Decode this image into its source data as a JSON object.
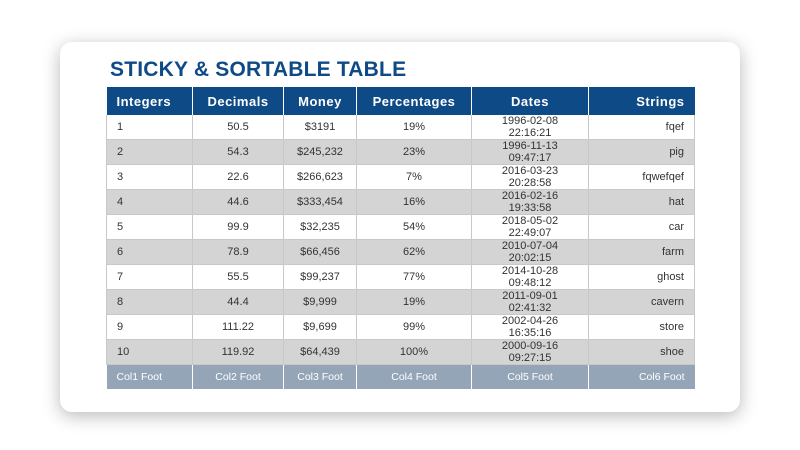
{
  "title": "STICKY & SORTABLE TABLE",
  "colors": {
    "header_bg": "#0e4a86",
    "title": "#0e4a86",
    "row_alt": "#d4d4d4",
    "footer_bg": "#94a5b8"
  },
  "columns": [
    "Integers",
    "Decimals",
    "Money",
    "Percentages",
    "Dates",
    "Strings"
  ],
  "rows": [
    [
      "1",
      "50.5",
      "$3191",
      "19%",
      "1996-02-08 22:16:21",
      "fqef"
    ],
    [
      "2",
      "54.3",
      "$245,232",
      "23%",
      "1996-11-13 09:47:17",
      "pig"
    ],
    [
      "3",
      "22.6",
      "$266,623",
      "7%",
      "2016-03-23 20:28:58",
      "fqwefqef"
    ],
    [
      "4",
      "44.6",
      "$333,454",
      "16%",
      "2016-02-16 19:33:58",
      "hat"
    ],
    [
      "5",
      "99.9",
      "$32,235",
      "54%",
      "2018-05-02 22:49:07",
      "car"
    ],
    [
      "6",
      "78.9",
      "$66,456",
      "62%",
      "2010-07-04 20:02:15",
      "farm"
    ],
    [
      "7",
      "55.5",
      "$99,237",
      "77%",
      "2014-10-28 09:48:12",
      "ghost"
    ],
    [
      "8",
      "44.4",
      "$9,999",
      "19%",
      "2011-09-01 02:41:32",
      "cavern"
    ],
    [
      "9",
      "111.22",
      "$9,699",
      "99%",
      "2002-04-26 16:35:16",
      "store"
    ],
    [
      "10",
      "119.92",
      "$64,439",
      "100%",
      "2000-09-16 09:27:15",
      "shoe"
    ]
  ],
  "footer": [
    "Col1 Foot",
    "Col2 Foot",
    "Col3 Foot",
    "Col4 Foot",
    "Col5 Foot",
    "Col6 Foot"
  ]
}
